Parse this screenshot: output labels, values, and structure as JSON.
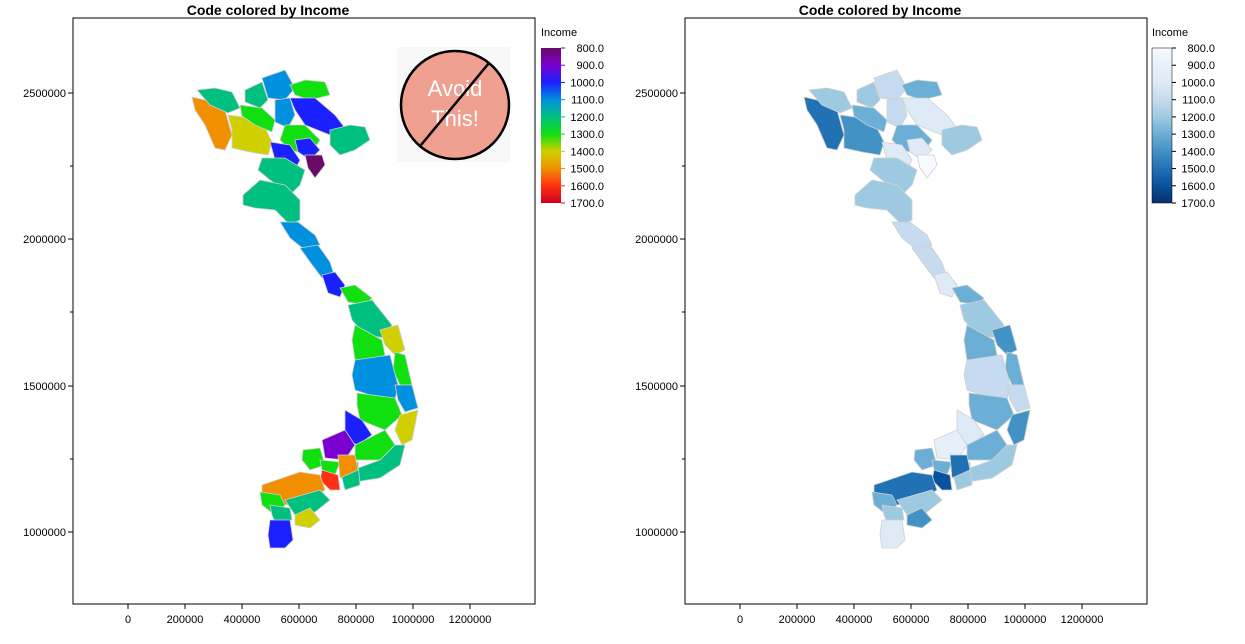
{
  "chart_data": [
    {
      "type": "choropleth",
      "title": "Code colored by Income",
      "legend_title": "Income",
      "legend_placement": "right",
      "palette": "rainbow",
      "color_stops": {
        "800": "#6a0a6a",
        "900": "#7a00d0",
        "1000": "#1a20ff",
        "1100": "#0090e0",
        "1200": "#00c080",
        "1300": "#10e010",
        "1400": "#d0d000",
        "1500": "#f09000",
        "1600": "#ff3010",
        "1700": "#d00020"
      },
      "legend_labels": [
        "800.0",
        "900.0",
        "1000.0",
        "1100.0",
        "1200.0",
        "1300.0",
        "1400.0",
        "1500.0",
        "1600.0",
        "1700.0"
      ],
      "x_ticks": [
        "0",
        "200000",
        "400000",
        "600000",
        "800000",
        "1000000",
        "1200000"
      ],
      "y_ticks": [
        "2500000",
        "2000000",
        "1500000",
        "1000000"
      ],
      "annotation": {
        "text_line1": "Avoid",
        "text_line2": "This!",
        "fill": "#f0a090"
      }
    },
    {
      "type": "choropleth",
      "title": "Code colored by Income",
      "legend_title": "Income",
      "legend_placement": "right",
      "palette": "blues",
      "color_stops": {
        "800": "#f7fbff",
        "900": "#e6f0fa",
        "1000": "#deebf7",
        "1100": "#c6dbef",
        "1200": "#9ecae1",
        "1300": "#6baed6",
        "1400": "#4292c6",
        "1500": "#2171b5",
        "1600": "#08519c",
        "1700": "#08306b"
      },
      "legend_labels": [
        "800.0",
        "900.0",
        "1000.0",
        "1100.0",
        "1200.0",
        "1300.0",
        "1400.0",
        "1500.0",
        "1600.0",
        "1700.0"
      ],
      "x_ticks": [
        "0",
        "200000",
        "400000",
        "600000",
        "800000",
        "1000000",
        "1200000"
      ],
      "y_ticks": [
        "2500000",
        "2000000",
        "1500000",
        "1000000"
      ]
    }
  ],
  "region_income": [
    1500,
    1450,
    1250,
    1300,
    1100,
    1200,
    1300,
    1050,
    1250,
    1150,
    1300,
    1000,
    850,
    1050,
    1250,
    1220,
    1150,
    1100,
    1050,
    1350,
    1250,
    1400,
    1300,
    1300,
    1080,
    1150,
    1300,
    1380,
    1050,
    950,
    1300,
    1200,
    1250,
    1350,
    1350,
    1600,
    1480,
    1500,
    1280,
    1220,
    1380,
    1250,
    1050
  ]
}
